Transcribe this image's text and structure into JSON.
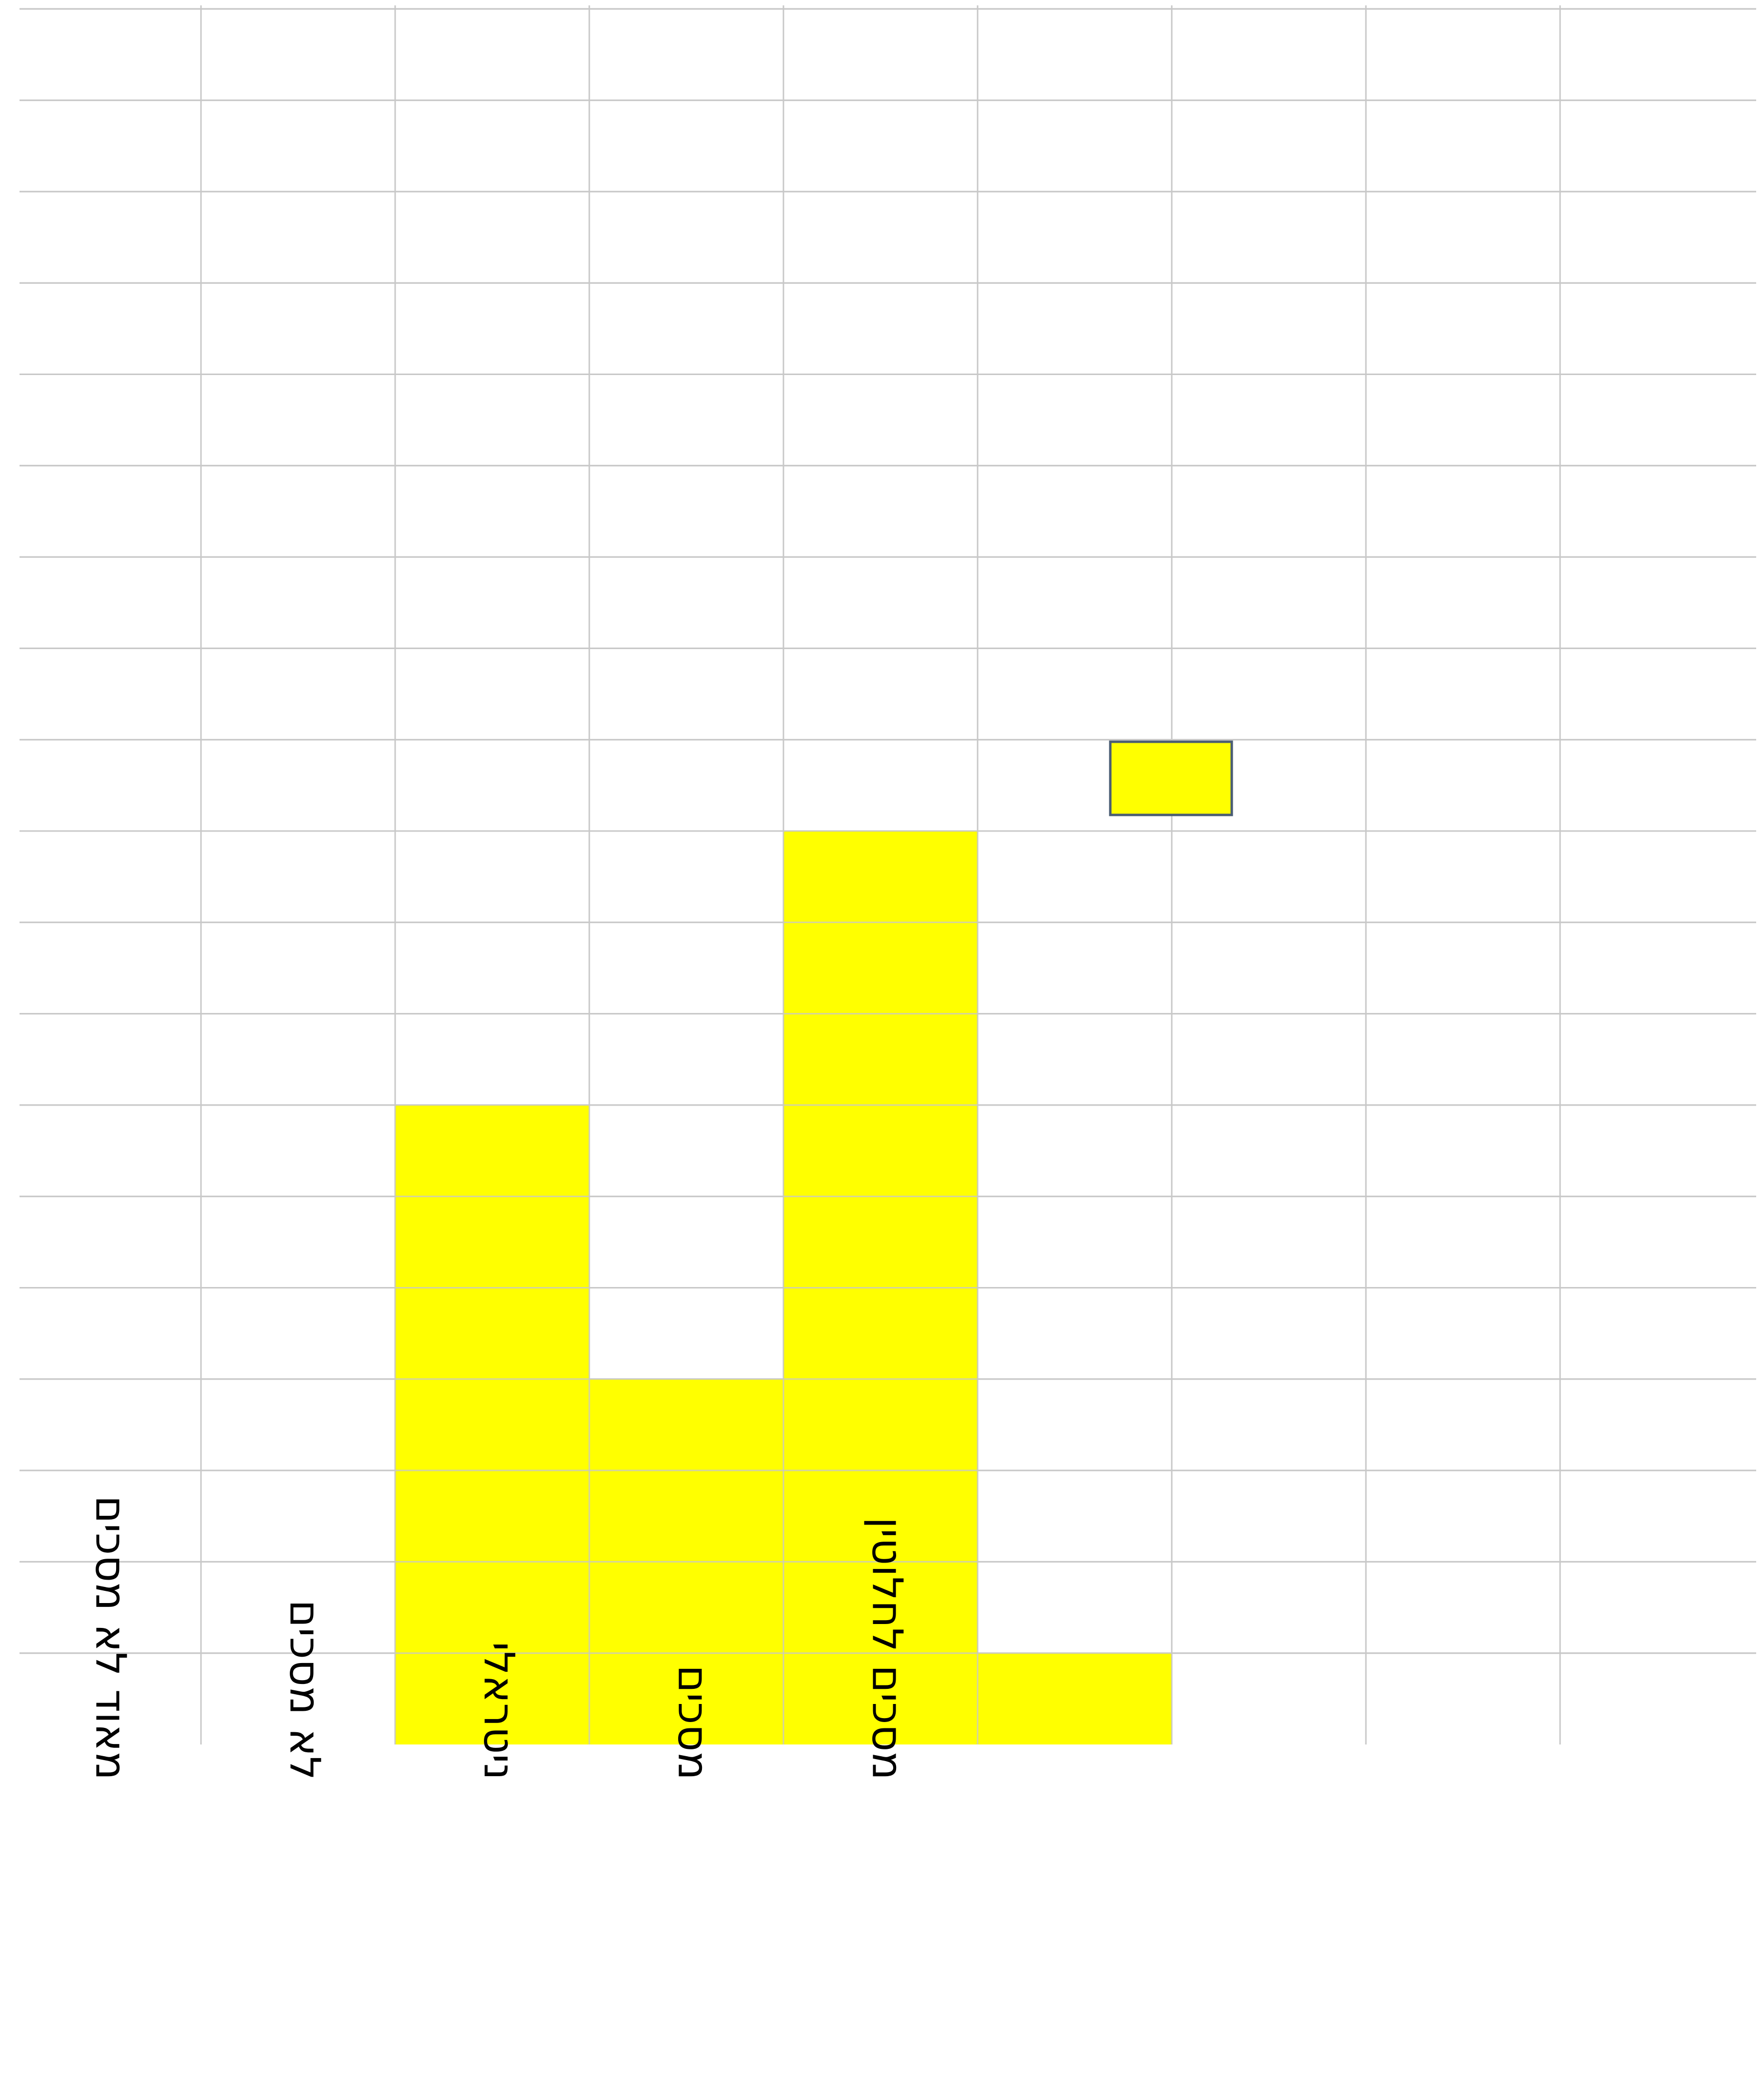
{
  "chart_data": {
    "type": "bar",
    "categories": [
      "מאוד לא מסכים",
      "לא מסכים",
      "ניטראלי",
      "מסכים",
      "מסכים לחלוטין"
    ],
    "series": [
      {
        "values": [
          0,
          7,
          4,
          10,
          1
        ]
      }
    ],
    "title": "",
    "xlabel": "",
    "ylabel": "",
    "ylim": [
      0,
      19
    ],
    "grid": true,
    "legend": "none",
    "colors": {
      "bar": "#ffff00",
      "grid": "#c8c8c8",
      "background": "#ffffff",
      "text": "#000000",
      "marker_border": "#4a5d73"
    }
  }
}
